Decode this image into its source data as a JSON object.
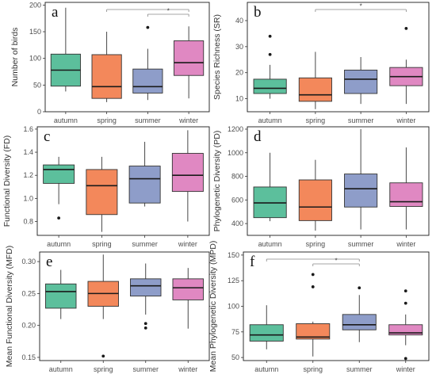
{
  "chart_data": [
    {
      "type": "box",
      "panel_letter": "a",
      "ylabel": "Number of birds",
      "xlabel": "",
      "categories": [
        "autumn",
        "spring",
        "summer",
        "winter"
      ],
      "ylim": [
        0,
        205
      ],
      "y_ticks": [
        0,
        50,
        100,
        150,
        200
      ],
      "colors": [
        "#5cbf9c",
        "#f3885b",
        "#8e9dc9",
        "#e088c2"
      ],
      "boxes": [
        {
          "min": 38,
          "q1": 48,
          "median": 78,
          "q3": 108,
          "max": 195,
          "outliers": []
        },
        {
          "min": 18,
          "q1": 25,
          "median": 47,
          "q3": 107,
          "max": 150,
          "outliers": []
        },
        {
          "min": 22,
          "q1": 35,
          "median": 47,
          "q3": 80,
          "max": 118,
          "outliers": [
            158
          ]
        },
        {
          "min": 25,
          "q1": 68,
          "median": 92,
          "q3": 133,
          "max": 160,
          "outliers": []
        }
      ],
      "significance": [
        {
          "from": "spring",
          "to": "winter",
          "label": ""
        },
        {
          "from": "summer",
          "to": "winter",
          "label": "*"
        }
      ]
    },
    {
      "type": "box",
      "panel_letter": "b",
      "ylabel": "Species Richness (SR)",
      "xlabel": "",
      "categories": [
        "autumn",
        "spring",
        "summer",
        "winter"
      ],
      "ylim": [
        5,
        47
      ],
      "y_ticks": [
        10,
        20,
        30,
        40
      ],
      "colors": [
        "#5cbf9c",
        "#f3885b",
        "#8e9dc9",
        "#e088c2"
      ],
      "boxes": [
        {
          "min": 10,
          "q1": 12,
          "median": 14,
          "q3": 17.5,
          "max": 23,
          "outliers": [
            27,
            34
          ]
        },
        {
          "min": 6,
          "q1": 9,
          "median": 11.5,
          "q3": 18,
          "max": 28,
          "outliers": []
        },
        {
          "min": 8,
          "q1": 12,
          "median": 17.5,
          "q3": 21,
          "max": 26,
          "outliers": []
        },
        {
          "min": 8,
          "q1": 15,
          "median": 18.5,
          "q3": 22,
          "max": 25,
          "outliers": [
            37
          ]
        }
      ],
      "significance": [
        {
          "from": "spring",
          "to": "winter",
          "label": "*"
        }
      ]
    },
    {
      "type": "box",
      "panel_letter": "c",
      "ylabel": "Functional Diversity (FD)",
      "xlabel": "",
      "categories": [
        "autumn",
        "spring",
        "summer",
        "winter"
      ],
      "ylim": [
        0.68,
        1.62
      ],
      "y_ticks": [
        0.8,
        1.0,
        1.2,
        1.4,
        1.6
      ],
      "colors": [
        "#5cbf9c",
        "#f3885b",
        "#8e9dc9",
        "#e088c2"
      ],
      "boxes": [
        {
          "min": 0.95,
          "q1": 1.13,
          "median": 1.25,
          "q3": 1.29,
          "max": 1.36,
          "outliers": [
            0.83
          ]
        },
        {
          "min": 0.71,
          "q1": 0.86,
          "median": 1.11,
          "q3": 1.25,
          "max": 1.36,
          "outliers": []
        },
        {
          "min": 0.93,
          "q1": 0.96,
          "median": 1.17,
          "q3": 1.28,
          "max": 1.49,
          "outliers": []
        },
        {
          "min": 0.8,
          "q1": 1.06,
          "median": 1.2,
          "q3": 1.39,
          "max": 1.59,
          "outliers": []
        }
      ],
      "significance": []
    },
    {
      "type": "box",
      "panel_letter": "d",
      "ylabel": "Phylogenetic Diversity (PD)",
      "xlabel": "",
      "categories": [
        "autumn",
        "spring",
        "summer",
        "winter"
      ],
      "ylim": [
        300,
        1220
      ],
      "y_ticks": [
        400,
        600,
        800,
        1000,
        1200
      ],
      "colors": [
        "#5cbf9c",
        "#f3885b",
        "#8e9dc9",
        "#e088c2"
      ],
      "boxes": [
        {
          "min": 420,
          "q1": 450,
          "median": 575,
          "q3": 710,
          "max": 1000,
          "outliers": []
        },
        {
          "min": 340,
          "q1": 425,
          "median": 540,
          "q3": 770,
          "max": 940,
          "outliers": []
        },
        {
          "min": 350,
          "q1": 540,
          "median": 695,
          "q3": 820,
          "max": 1200,
          "outliers": []
        },
        {
          "min": 350,
          "q1": 545,
          "median": 585,
          "q3": 745,
          "max": 1045,
          "outliers": []
        }
      ],
      "significance": []
    },
    {
      "type": "box",
      "panel_letter": "e",
      "ylabel": "Mean Functional Diversity (MFD)",
      "xlabel": "",
      "categories": [
        "autumn",
        "spring",
        "summer",
        "winter"
      ],
      "ylim": [
        0.145,
        0.315
      ],
      "y_ticks": [
        0.15,
        0.2,
        0.25,
        0.3
      ],
      "colors": [
        "#5cbf9c",
        "#f3885b",
        "#8e9dc9",
        "#e088c2"
      ],
      "boxes": [
        {
          "min": 0.21,
          "q1": 0.227,
          "median": 0.253,
          "q3": 0.265,
          "max": 0.287,
          "outliers": []
        },
        {
          "min": 0.21,
          "q1": 0.23,
          "median": 0.25,
          "q3": 0.269,
          "max": 0.311,
          "outliers": [
            0.152
          ]
        },
        {
          "min": 0.217,
          "q1": 0.246,
          "median": 0.262,
          "q3": 0.273,
          "max": 0.297,
          "outliers": [
            0.196,
            0.203
          ]
        },
        {
          "min": 0.195,
          "q1": 0.24,
          "median": 0.259,
          "q3": 0.273,
          "max": 0.29,
          "outliers": []
        }
      ],
      "significance": []
    },
    {
      "type": "box",
      "panel_letter": "f",
      "ylabel": "Mean Phylogenetic Diversity (MPD)",
      "xlabel": "",
      "categories": [
        "autumn",
        "spring",
        "summer",
        "winter"
      ],
      "ylim": [
        47,
        153
      ],
      "y_ticks": [
        50,
        75,
        100,
        125,
        150
      ],
      "colors": [
        "#5cbf9c",
        "#f3885b",
        "#8e9dc9",
        "#e088c2"
      ],
      "boxes": [
        {
          "min": 58,
          "q1": 66,
          "median": 72,
          "q3": 82,
          "max": 101,
          "outliers": []
        },
        {
          "min": 51,
          "q1": 68,
          "median": 70,
          "q3": 83,
          "max": 85,
          "outliers": [
            119,
            131
          ]
        },
        {
          "min": 65,
          "q1": 77,
          "median": 82,
          "q3": 92,
          "max": 111,
          "outliers": [
            118
          ]
        },
        {
          "min": 62,
          "q1": 72,
          "median": 74,
          "q3": 82,
          "max": 92,
          "outliers": [
            49,
            103,
            115
          ]
        }
      ],
      "significance": [
        {
          "from": "autumn",
          "to": "summer",
          "label": ""
        },
        {
          "from": "spring",
          "to": "summer",
          "label": "*"
        }
      ]
    }
  ]
}
